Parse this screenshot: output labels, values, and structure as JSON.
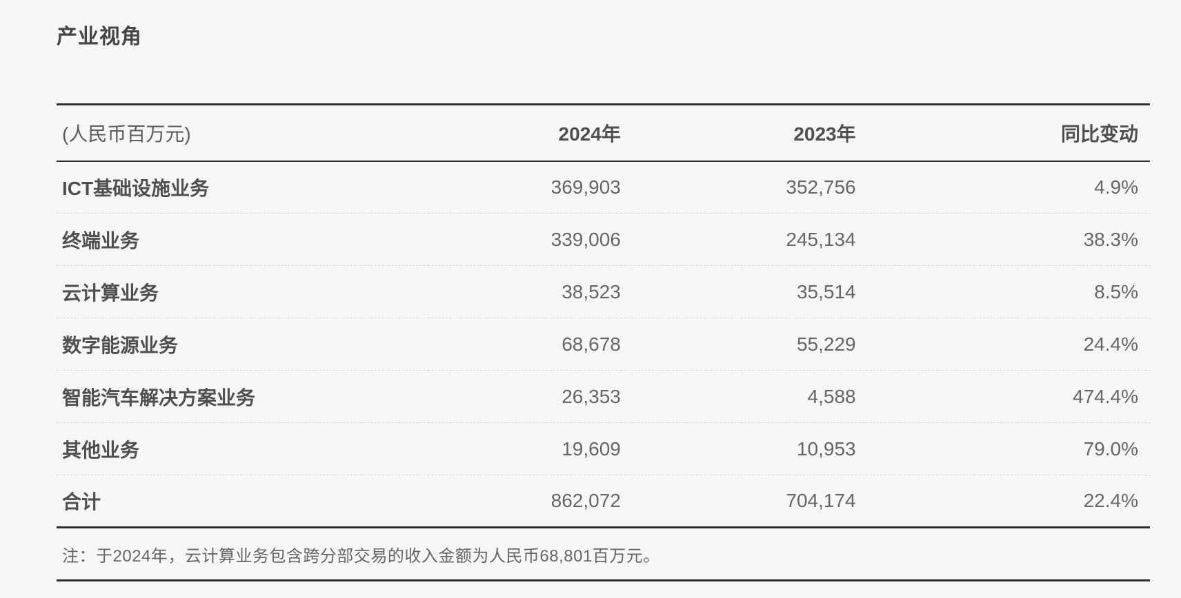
{
  "page": {
    "title": "产业视角",
    "background_color": "#f6f6f5",
    "line_color": "#2e2e2e",
    "text_color": "#595959"
  },
  "table": {
    "unit_label": "(人民币百万元)",
    "columns": [
      "2024年",
      "2023年",
      "同比变动"
    ],
    "rows": [
      {
        "label": "ICT基础设施业务",
        "y2024": "369,903",
        "y2023": "352,756",
        "yoy": "4.9%"
      },
      {
        "label": "终端业务",
        "y2024": "339,006",
        "y2023": "245,134",
        "yoy": "38.3%"
      },
      {
        "label": "云计算业务",
        "y2024": "38,523",
        "y2023": "35,514",
        "yoy": "8.5%"
      },
      {
        "label": "数字能源业务",
        "y2024": "68,678",
        "y2023": "55,229",
        "yoy": "24.4%"
      },
      {
        "label": "智能汽车解决方案业务",
        "y2024": "26,353",
        "y2023": "4,588",
        "yoy": "474.4%"
      },
      {
        "label": "其他业务",
        "y2024": "19,609",
        "y2023": "10,953",
        "yoy": "79.0%"
      }
    ],
    "total": {
      "label": "合计",
      "y2024": "862,072",
      "y2023": "704,174",
      "yoy": "22.4%"
    },
    "note": "注：于2024年，云计算业务包含跨分部交易的收入金额为人民币68,801百万元。"
  }
}
